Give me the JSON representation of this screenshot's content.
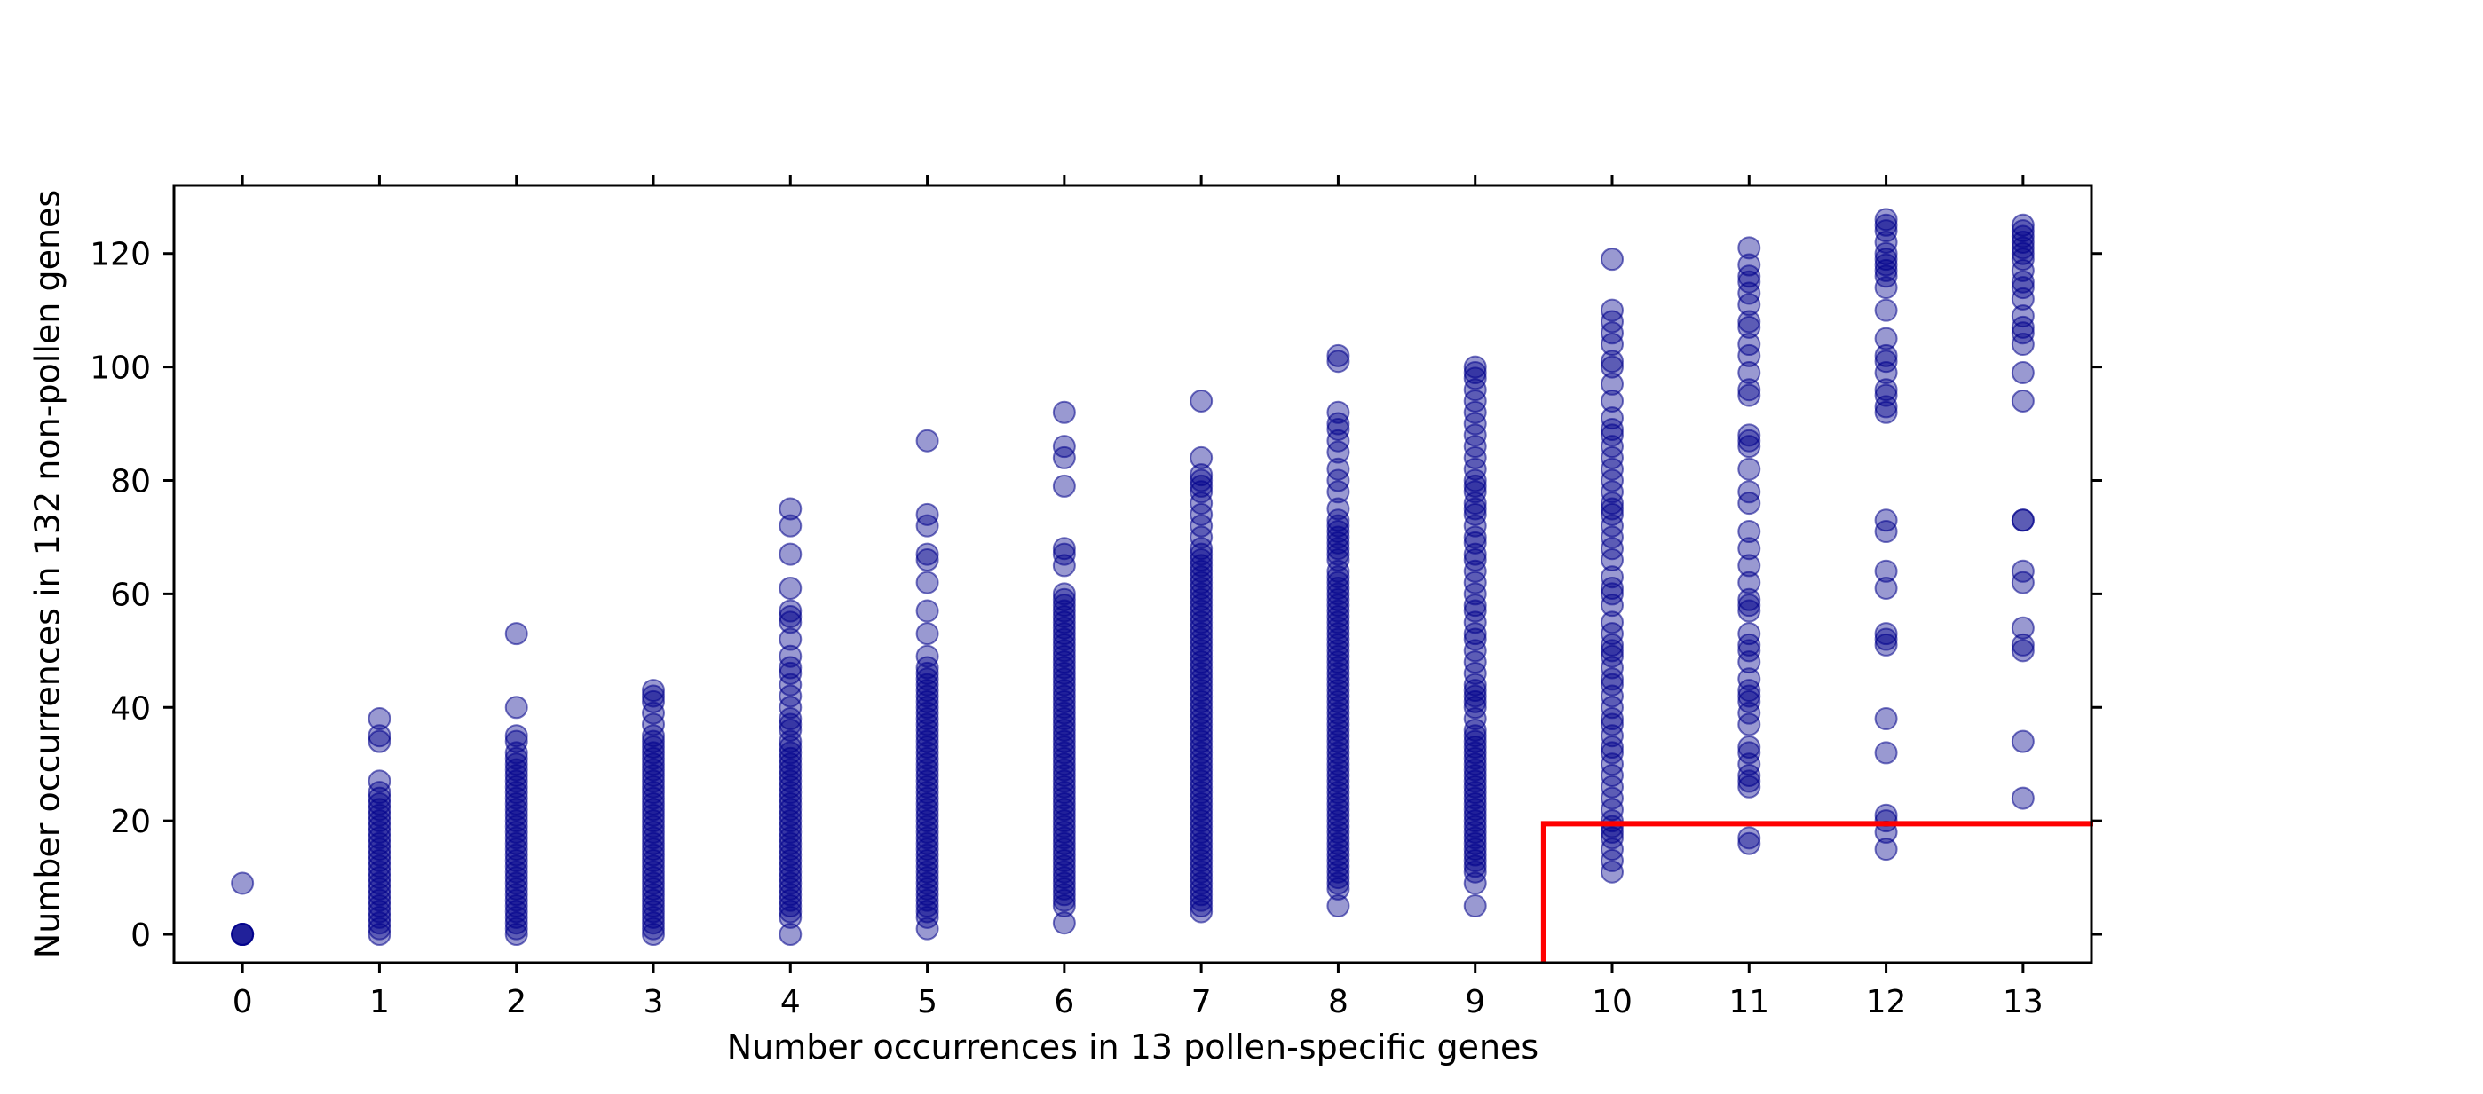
{
  "chart_data": {
    "type": "scatter",
    "title": "",
    "xlabel": "Number occurrences in 13 pollen-specific genes",
    "ylabel": "Number occurrences in 132 non-pollen genes",
    "xlim": [
      -0.5,
      13.5
    ],
    "ylim": [
      -5,
      132
    ],
    "x_ticks": [
      0,
      1,
      2,
      3,
      4,
      5,
      6,
      7,
      8,
      9,
      10,
      11,
      12,
      13
    ],
    "x_tick_labels": [
      "0",
      "1",
      "2",
      "3",
      "4",
      "5",
      "6",
      "7",
      "8",
      "9",
      "10",
      "11",
      "12",
      "13"
    ],
    "y_ticks": [
      0,
      20,
      40,
      60,
      80,
      100,
      120
    ],
    "y_tick_labels": [
      "0",
      "20",
      "40",
      "60",
      "80",
      "100",
      "120"
    ],
    "grid": false,
    "legend": "none",
    "marker_color": "#00008b",
    "marker_alpha": 0.4,
    "threshold_line": {
      "color": "#ff0000",
      "x": 9.5,
      "y": 19.5
    },
    "series": [
      {
        "points_by_x": [
          {
            "x": 0,
            "y": [
              0,
              0,
              0,
              0,
              9
            ]
          },
          {
            "x": 1,
            "y": [
              0,
              1,
              2,
              3,
              4,
              5,
              6,
              7,
              8,
              9,
              10,
              11,
              12,
              13,
              14,
              15,
              16,
              17,
              18,
              19,
              20,
              21,
              22,
              23,
              24,
              25,
              27,
              34,
              35,
              38
            ]
          },
          {
            "x": 2,
            "y": [
              0,
              1,
              2,
              3,
              4,
              5,
              6,
              7,
              8,
              9,
              10,
              11,
              12,
              13,
              14,
              15,
              16,
              17,
              18,
              19,
              20,
              21,
              22,
              23,
              24,
              25,
              26,
              27,
              28,
              29,
              30,
              31,
              32,
              34,
              35,
              40,
              53
            ]
          },
          {
            "x": 3,
            "y": [
              0,
              1,
              2,
              3,
              4,
              5,
              6,
              7,
              8,
              9,
              10,
              11,
              12,
              13,
              14,
              15,
              16,
              17,
              18,
              19,
              20,
              21,
              22,
              23,
              24,
              25,
              26,
              27,
              28,
              29,
              30,
              31,
              32,
              33,
              34,
              35,
              37,
              39,
              41,
              42,
              43
            ]
          },
          {
            "x": 4,
            "y": [
              0,
              3,
              4,
              5,
              6,
              7,
              8,
              9,
              10,
              11,
              12,
              13,
              14,
              15,
              16,
              17,
              18,
              19,
              20,
              21,
              22,
              23,
              24,
              25,
              26,
              27,
              28,
              29,
              30,
              31,
              32,
              33,
              34,
              36,
              37,
              38,
              40,
              42,
              44,
              46,
              47,
              49,
              52,
              55,
              56,
              57,
              61,
              67,
              72,
              75
            ]
          },
          {
            "x": 5,
            "y": [
              1,
              3,
              4,
              5,
              6,
              7,
              8,
              9,
              10,
              11,
              12,
              13,
              14,
              15,
              16,
              17,
              18,
              19,
              20,
              21,
              22,
              23,
              24,
              25,
              26,
              27,
              28,
              29,
              30,
              31,
              32,
              33,
              34,
              35,
              36,
              37,
              38,
              39,
              40,
              41,
              42,
              43,
              44,
              45,
              46,
              47,
              49,
              53,
              57,
              62,
              66,
              67,
              72,
              74,
              87
            ]
          },
          {
            "x": 6,
            "y": [
              2,
              5,
              6,
              7,
              8,
              9,
              10,
              11,
              12,
              13,
              14,
              15,
              16,
              17,
              18,
              19,
              20,
              21,
              22,
              23,
              24,
              25,
              26,
              27,
              28,
              29,
              30,
              31,
              32,
              33,
              34,
              35,
              36,
              37,
              38,
              39,
              40,
              41,
              42,
              43,
              44,
              45,
              46,
              47,
              48,
              49,
              50,
              51,
              52,
              53,
              54,
              55,
              56,
              57,
              58,
              59,
              60,
              65,
              67,
              68,
              79,
              84,
              86,
              92
            ]
          },
          {
            "x": 7,
            "y": [
              4,
              5,
              6,
              7,
              8,
              9,
              10,
              11,
              12,
              13,
              14,
              15,
              16,
              17,
              18,
              19,
              20,
              21,
              22,
              23,
              24,
              25,
              26,
              27,
              28,
              29,
              30,
              31,
              32,
              33,
              34,
              35,
              36,
              37,
              38,
              39,
              40,
              41,
              42,
              43,
              44,
              45,
              46,
              47,
              48,
              49,
              50,
              51,
              52,
              53,
              54,
              55,
              56,
              57,
              58,
              59,
              60,
              61,
              62,
              63,
              64,
              65,
              66,
              67,
              68,
              70,
              72,
              74,
              76,
              78,
              79,
              80,
              81,
              84,
              94
            ]
          },
          {
            "x": 8,
            "y": [
              5,
              8,
              9,
              10,
              11,
              12,
              13,
              14,
              15,
              16,
              17,
              18,
              19,
              20,
              21,
              22,
              23,
              24,
              25,
              26,
              27,
              28,
              29,
              30,
              31,
              32,
              33,
              34,
              35,
              36,
              37,
              38,
              39,
              40,
              41,
              42,
              43,
              44,
              45,
              46,
              47,
              48,
              49,
              50,
              51,
              52,
              53,
              54,
              55,
              56,
              57,
              58,
              59,
              60,
              61,
              62,
              63,
              64,
              66,
              67,
              68,
              69,
              70,
              71,
              72,
              73,
              75,
              78,
              80,
              82,
              85,
              87,
              89,
              90,
              92,
              101,
              102
            ]
          },
          {
            "x": 9,
            "y": [
              5,
              9,
              11,
              12,
              13,
              14,
              15,
              16,
              17,
              18,
              19,
              20,
              21,
              22,
              23,
              24,
              25,
              26,
              27,
              28,
              29,
              30,
              31,
              32,
              33,
              34,
              35,
              36,
              38,
              40,
              41,
              42,
              43,
              44,
              46,
              48,
              50,
              52,
              53,
              55,
              57,
              58,
              60,
              62,
              64,
              66,
              67,
              69,
              70,
              72,
              74,
              75,
              76,
              78,
              79,
              80,
              82,
              84,
              86,
              88,
              90,
              92,
              94,
              96,
              98,
              99,
              100
            ]
          },
          {
            "x": 10,
            "y": [
              11,
              13,
              15,
              17,
              18,
              19,
              20,
              22,
              24,
              26,
              28,
              30,
              32,
              33,
              35,
              37,
              38,
              40,
              42,
              44,
              45,
              47,
              49,
              50,
              51,
              53,
              55,
              58,
              60,
              61,
              63,
              66,
              68,
              70,
              72,
              74,
              75,
              76,
              78,
              80,
              82,
              84,
              86,
              88,
              89,
              91,
              94,
              97,
              100,
              101,
              104,
              106,
              108,
              110,
              119
            ]
          },
          {
            "x": 11,
            "y": [
              16,
              17,
              26,
              27,
              28,
              30,
              32,
              33,
              37,
              39,
              41,
              42,
              43,
              45,
              48,
              50,
              51,
              53,
              57,
              58,
              59,
              62,
              65,
              68,
              71,
              76,
              78,
              82,
              86,
              87,
              88,
              95,
              96,
              99,
              102,
              104,
              107,
              108,
              111,
              113,
              115,
              116,
              118,
              121
            ]
          },
          {
            "x": 12,
            "y": [
              15,
              18,
              20,
              21,
              32,
              38,
              51,
              52,
              53,
              61,
              64,
              71,
              73,
              92,
              93,
              95,
              96,
              99,
              101,
              102,
              105,
              110,
              114,
              116,
              117,
              118,
              119,
              120,
              122,
              124,
              125,
              126
            ]
          },
          {
            "x": 13,
            "y": [
              24,
              34,
              50,
              51,
              54,
              62,
              64,
              73,
              73,
              94,
              99,
              104,
              106,
              107,
              109,
              112,
              114,
              115,
              117,
              119,
              120,
              121,
              122,
              123,
              124,
              125
            ]
          }
        ]
      }
    ]
  }
}
